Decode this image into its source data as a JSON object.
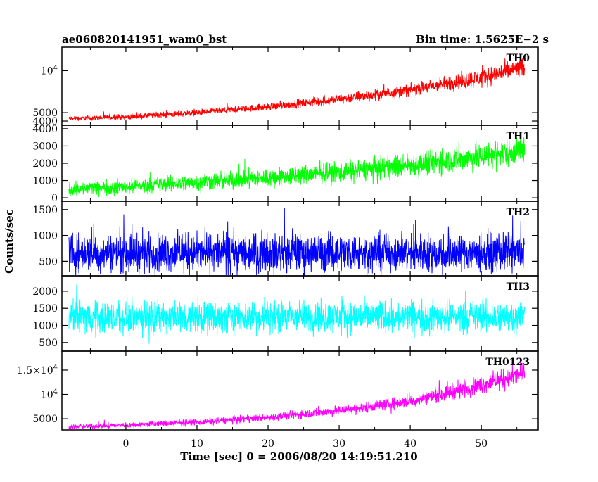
{
  "header": {
    "left_title": "ae060820141951_wam0_bst",
    "right_title": "Bin time: 1.5625E−2 s"
  },
  "chart_data": {
    "type": "line",
    "title": "ae060820141951_wam0_bst",
    "subtitle": "Bin time: 1.5625E−2 s",
    "xlabel": "Time [sec] 0 = 2006/08/20 14:19:51.210",
    "ylabel": "Counts/sec",
    "xlim": [
      -9,
      58
    ],
    "data_x_range": [
      -8,
      56
    ],
    "x_ticks": [
      0,
      10,
      20,
      30,
      40,
      50
    ],
    "x_tick_labels": [
      "0",
      "10",
      "20",
      "30",
      "40",
      "50"
    ],
    "grid": false,
    "series": [
      {
        "name": "TH0",
        "color": "#ff0000",
        "ylim": [
          3500,
          12800
        ],
        "y_ticks": [
          4000,
          5000,
          10000
        ],
        "y_tick_labels": [
          "4000",
          "5000",
          "10^4"
        ],
        "trend": [
          [
            -8,
            4300
          ],
          [
            0,
            4500
          ],
          [
            10,
            5000
          ],
          [
            20,
            5700
          ],
          [
            30,
            6600
          ],
          [
            40,
            7700
          ],
          [
            50,
            9200
          ],
          [
            56,
            10400
          ]
        ],
        "noise_amplitude": [
          [
            -8,
            280
          ],
          [
            20,
            450
          ],
          [
            40,
            750
          ],
          [
            56,
            1300
          ]
        ]
      },
      {
        "name": "TH1",
        "color": "#00ff00",
        "ylim": [
          -200,
          4200
        ],
        "y_ticks": [
          0,
          1000,
          2000,
          3000,
          4000
        ],
        "y_tick_labels": [
          "0",
          "1000",
          "2000",
          "3000",
          "4000"
        ],
        "trend": [
          [
            -8,
            500
          ],
          [
            0,
            650
          ],
          [
            10,
            900
          ],
          [
            20,
            1150
          ],
          [
            30,
            1500
          ],
          [
            40,
            1900
          ],
          [
            50,
            2400
          ],
          [
            56,
            2800
          ]
        ],
        "noise_amplitude": [
          [
            -8,
            400
          ],
          [
            20,
            550
          ],
          [
            40,
            700
          ],
          [
            56,
            850
          ]
        ]
      },
      {
        "name": "TH2",
        "color": "#0000ff",
        "ylim": [
          220,
          1660
        ],
        "y_ticks": [
          500,
          1000,
          1500
        ],
        "y_tick_labels": [
          "500",
          "1000",
          "1500"
        ],
        "trend": [
          [
            -8,
            670
          ],
          [
            56,
            670
          ]
        ],
        "noise_amplitude": [
          [
            -8,
            380
          ],
          [
            56,
            380
          ]
        ]
      },
      {
        "name": "TH3",
        "color": "#00ffff",
        "ylim": [
          250,
          2450
        ],
        "y_ticks": [
          500,
          1000,
          1500,
          2000
        ],
        "y_tick_labels": [
          "500",
          "1000",
          "1500",
          "2000"
        ],
        "trend": [
          [
            -8,
            1250
          ],
          [
            56,
            1250
          ]
        ],
        "noise_amplitude": [
          [
            -8,
            480
          ],
          [
            56,
            480
          ]
        ]
      },
      {
        "name": "TH0123",
        "color": "#ff00ff",
        "ylim": [
          2700,
          18900
        ],
        "y_ticks": [
          5000,
          10000,
          15000
        ],
        "y_tick_labels": [
          "5000",
          "10^4",
          "1.5×10^4"
        ],
        "trend": [
          [
            -8,
            3300
          ],
          [
            0,
            3700
          ],
          [
            10,
            4300
          ],
          [
            20,
            5300
          ],
          [
            30,
            6700
          ],
          [
            40,
            8600
          ],
          [
            50,
            12000
          ],
          [
            56,
            14300
          ]
        ],
        "noise_amplitude": [
          [
            -8,
            500
          ],
          [
            20,
            800
          ],
          [
            40,
            1300
          ],
          [
            56,
            2200
          ]
        ]
      }
    ]
  }
}
